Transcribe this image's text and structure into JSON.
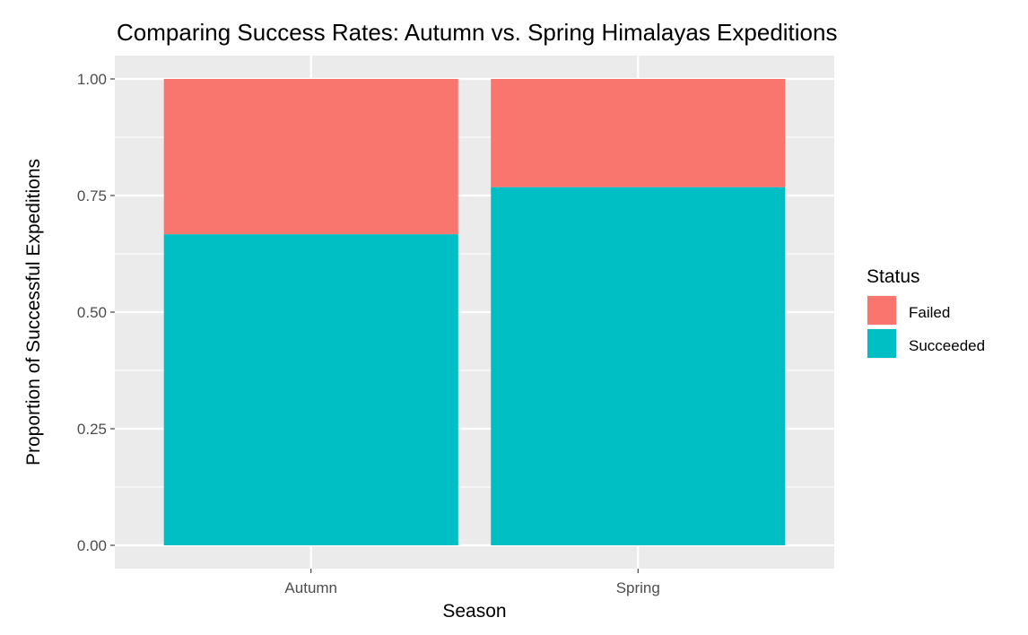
{
  "chart_data": {
    "type": "bar",
    "stacked": true,
    "title": "Comparing Success Rates: Autumn vs. Spring Himalayas Expeditions",
    "xlabel": "Season",
    "ylabel": "Proportion of Successful Expeditions",
    "categories": [
      "Autumn",
      "Spring"
    ],
    "series": [
      {
        "name": "Succeeded",
        "color": "#00BFC4",
        "values": [
          0.667,
          0.768
        ]
      },
      {
        "name": "Failed",
        "color": "#F8766D",
        "values": [
          0.333,
          0.232
        ]
      }
    ],
    "ylim": [
      -0.05,
      1.05
    ],
    "yticks": [
      0,
      0.25,
      0.5,
      0.75,
      1
    ],
    "ytick_labels": [
      "0.00",
      "0.25",
      "0.50",
      "0.75",
      "1.00"
    ],
    "grid": true,
    "panel_background": "#EBEBEB",
    "legend": {
      "title": "Status",
      "position": "right",
      "items": [
        {
          "label": "Failed",
          "color": "#F8766D"
        },
        {
          "label": "Succeeded",
          "color": "#00BFC4"
        }
      ]
    }
  }
}
